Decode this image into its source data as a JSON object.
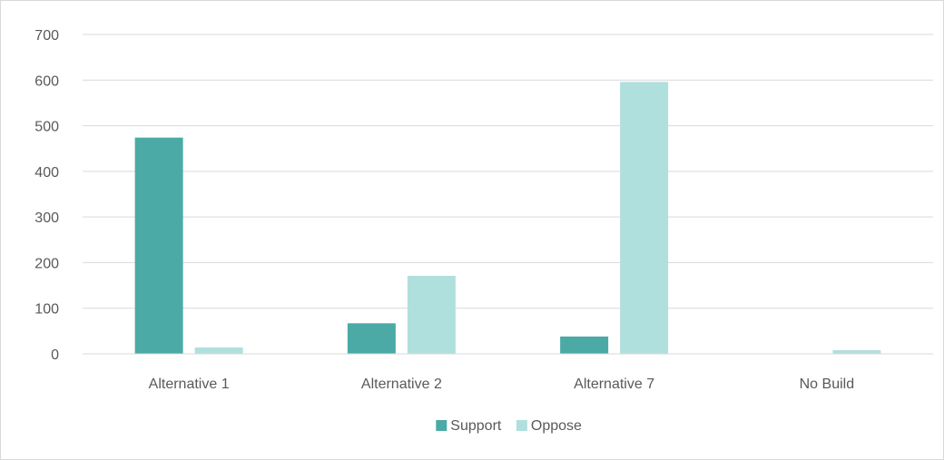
{
  "chart_data": {
    "type": "bar",
    "categories": [
      "Alternative 1",
      "Alternative 2",
      "Alternative 7",
      "No Build"
    ],
    "series": [
      {
        "name": "Support",
        "values": [
          474,
          67,
          38,
          0
        ],
        "color": "#4baaa5"
      },
      {
        "name": "Oppose",
        "values": [
          14,
          171,
          596,
          8
        ],
        "color": "#b0e0de"
      }
    ],
    "title": "",
    "xlabel": "",
    "ylabel": "",
    "ylim": [
      0,
      700
    ],
    "yticks": [
      0,
      100,
      200,
      300,
      400,
      500,
      600,
      700
    ],
    "grid": true,
    "legend_position": "bottom",
    "gridline_color": "#d9d9d9",
    "text_color": "#595959"
  }
}
